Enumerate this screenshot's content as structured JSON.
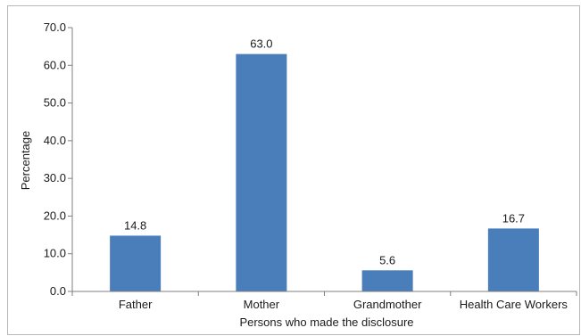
{
  "chart_data": {
    "type": "bar",
    "title": "",
    "xlabel": "Persons who made the disclosure",
    "ylabel": "Percentage",
    "ylim": [
      0,
      70
    ],
    "yticks": [
      "0.0",
      "10.0",
      "20.0",
      "30.0",
      "40.0",
      "50.0",
      "60.0",
      "70.0"
    ],
    "categories": [
      "Father",
      "Mother",
      "Grandmother",
      "Health Care Workers"
    ],
    "values": [
      14.8,
      63.0,
      5.6,
      16.7
    ],
    "value_labels": [
      "14.8",
      "63.0",
      "5.6",
      "16.7"
    ],
    "bar_color": "#4a7ebb",
    "grid": false,
    "legend": "none"
  }
}
